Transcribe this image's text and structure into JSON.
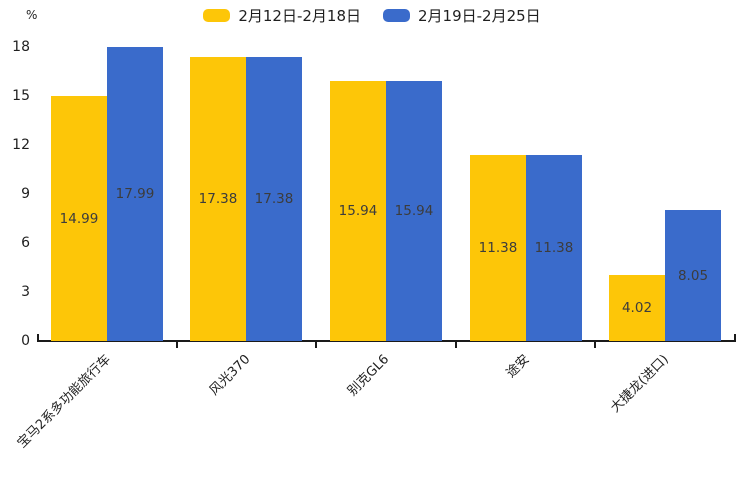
{
  "chart_data": {
    "type": "bar",
    "title": "",
    "categories": [
      "宝马2系多功能旅行车",
      "风光370",
      "别克GL6",
      "途安",
      "大捷龙(进口)"
    ],
    "series": [
      {
        "name": "2月12日-2月18日",
        "color": "#FDC608",
        "values": [
          14.99,
          17.38,
          15.94,
          11.38,
          4.02
        ]
      },
      {
        "name": "2月19日-2月25日",
        "color": "#3A6BCB",
        "values": [
          17.99,
          17.38,
          15.94,
          11.38,
          8.05
        ]
      }
    ],
    "unit_label": "%",
    "yticks": [
      0,
      3,
      6,
      9,
      12,
      15,
      18
    ],
    "ylim": [
      0,
      18
    ],
    "grid": false,
    "legend_position": "top-center",
    "value_labels": "inside-center",
    "xlabel_rotation_deg": 45
  },
  "colors": {
    "background": "#ffffff",
    "axis": "#1a1a1a",
    "tick_text": "#1f1f1f",
    "value_text": "#3c3c3c"
  }
}
